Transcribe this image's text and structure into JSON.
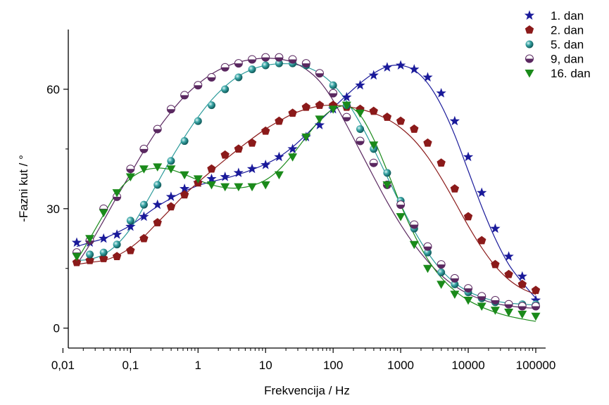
{
  "chart_data": {
    "type": "scatter",
    "xlabel": "Frekvencija / Hz",
    "ylabel": "-Fazni kut / °",
    "x_scale": "log",
    "xlim": [
      0.012,
      140000
    ],
    "ylim": [
      -5,
      75
    ],
    "x_ticks": [
      {
        "value": 0.01,
        "label": "0,01"
      },
      {
        "value": 0.1,
        "label": "0,1"
      },
      {
        "value": 1,
        "label": "1"
      },
      {
        "value": 10,
        "label": "10"
      },
      {
        "value": 100,
        "label": "100"
      },
      {
        "value": 1000,
        "label": "1000"
      },
      {
        "value": 10000,
        "label": "10000"
      },
      {
        "value": 100000,
        "label": "100000"
      }
    ],
    "y_ticks": [
      {
        "value": 0,
        "label": "0"
      },
      {
        "value": 30,
        "label": "30"
      },
      {
        "value": 60,
        "label": "60"
      }
    ],
    "grid": false,
    "legend_position": "top-right",
    "x": [
      0.016,
      0.025,
      0.04,
      0.063,
      0.1,
      0.158,
      0.251,
      0.398,
      0.631,
      1,
      1.585,
      2.512,
      3.981,
      6.31,
      10,
      15.85,
      25.12,
      39.81,
      63.1,
      100,
      158.5,
      251.2,
      398.1,
      631,
      1000,
      1585,
      2512,
      3981,
      6310,
      10000,
      15850,
      25120,
      39810,
      63100,
      100000
    ],
    "series": [
      {
        "name": "1. dan",
        "marker": "star",
        "color": "#1a1a9a",
        "values": [
          21.5,
          21.5,
          22.5,
          23.5,
          25.5,
          28,
          31,
          33,
          35,
          36.5,
          37.5,
          38,
          39,
          40,
          41,
          43,
          45,
          48,
          51,
          55,
          58,
          61,
          63.5,
          65.5,
          66,
          65,
          63,
          59,
          52,
          43,
          34,
          25,
          18,
          13,
          7
        ],
        "fit": [
          20.5,
          21.5,
          22.5,
          24,
          25.8,
          28.2,
          30.6,
          32.6,
          34.4,
          35.8,
          36.8,
          37.6,
          38.6,
          39.8,
          41.2,
          43,
          45.5,
          48.6,
          52,
          55.3,
          58.5,
          61.5,
          64,
          65.7,
          66,
          64.8,
          61.5,
          56,
          48.5,
          39.5,
          30.5,
          22.5,
          16,
          11.5,
          7.5
        ]
      },
      {
        "name": "2. dan",
        "marker": "pentagon",
        "color": "#8b1a1a",
        "values": [
          16.5,
          17,
          17.5,
          18,
          19.5,
          22.5,
          26.5,
          30.5,
          33.5,
          36.5,
          40,
          43.5,
          45,
          46.5,
          49.5,
          52,
          54,
          55.5,
          56,
          56,
          55.5,
          55,
          54.5,
          53,
          52,
          50,
          46.5,
          41.5,
          35,
          28,
          22,
          16,
          13.5,
          11,
          9.5
        ],
        "fit": [
          16,
          16.5,
          17,
          18.2,
          20.2,
          23,
          26.5,
          30,
          33.5,
          36.6,
          39.5,
          42.3,
          45,
          47.6,
          50,
          52,
          53.8,
          55,
          55.8,
          56,
          55.7,
          55,
          54,
          52.5,
          50.3,
          47.2,
          43,
          37.7,
          31.8,
          25.7,
          20.2,
          15.6,
          12.2,
          9.9,
          8.5
        ]
      },
      {
        "name": "5. dan",
        "marker": "sphere",
        "color": "#2a9a9a",
        "values": [
          19,
          18.5,
          19,
          21,
          27,
          31,
          36,
          42,
          47,
          52,
          56,
          60,
          63,
          65,
          66,
          66.5,
          66.5,
          66,
          64,
          61,
          56,
          50,
          45,
          39,
          32,
          25,
          19,
          14,
          11,
          9,
          7.5,
          6.5,
          6,
          6,
          6
        ],
        "fit": [
          17,
          17.3,
          18.5,
          21,
          25,
          30.5,
          36.5,
          42.5,
          48,
          53,
          57.3,
          60.7,
          63.3,
          65,
          66,
          66.4,
          66.3,
          65.6,
          64,
          61.2,
          57,
          51.5,
          45,
          38,
          31,
          24.5,
          19,
          14.6,
          11.4,
          9.2,
          7.8,
          6.8,
          6.3,
          6,
          5.8
        ]
      },
      {
        "name": "9, dan",
        "marker": "half-circle",
        "color": "#5a2860",
        "values": [
          19,
          22,
          30,
          33,
          40,
          45,
          50,
          55,
          58.5,
          61,
          63,
          65.5,
          66.5,
          67.5,
          68,
          68,
          67.5,
          66.5,
          64,
          59,
          53,
          47,
          41.5,
          36,
          31,
          26,
          20.5,
          16,
          12.5,
          10,
          8,
          7,
          6,
          5.5,
          5.5
        ],
        "fit": [
          16,
          21,
          27,
          33,
          38.8,
          44.5,
          49.8,
          54.3,
          58.2,
          61.3,
          63.8,
          65.6,
          66.8,
          67.5,
          67.8,
          67.6,
          66.8,
          65,
          62,
          57.2,
          51,
          44.5,
          38,
          31.7,
          26,
          21,
          16.8,
          13.3,
          10.6,
          8.6,
          7.2,
          6.2,
          5.6,
          5.2,
          5
        ]
      },
      {
        "name": "16. dan",
        "marker": "triangle-down",
        "color": "#1a8a1a",
        "values": [
          18,
          22.5,
          29,
          34,
          38,
          40,
          40.5,
          40,
          38.5,
          37.5,
          36,
          35.5,
          35.5,
          35.5,
          36,
          38.5,
          43,
          48,
          52.5,
          55,
          56,
          54,
          46,
          36,
          28,
          21,
          15,
          11,
          8.5,
          7,
          5.5,
          4.5,
          4,
          3.5,
          3
        ],
        "fit": [
          17,
          22.5,
          28.5,
          34,
          37.6,
          39.6,
          40.2,
          39.8,
          38.6,
          37.2,
          36,
          35.3,
          35.2,
          35.8,
          37.2,
          39.8,
          43.6,
          48,
          52.2,
          55,
          55.8,
          53.5,
          47.5,
          39.5,
          31,
          23.5,
          17.3,
          12.7,
          9.4,
          7,
          5.3,
          4,
          3,
          2.3,
          1.7
        ]
      }
    ]
  }
}
